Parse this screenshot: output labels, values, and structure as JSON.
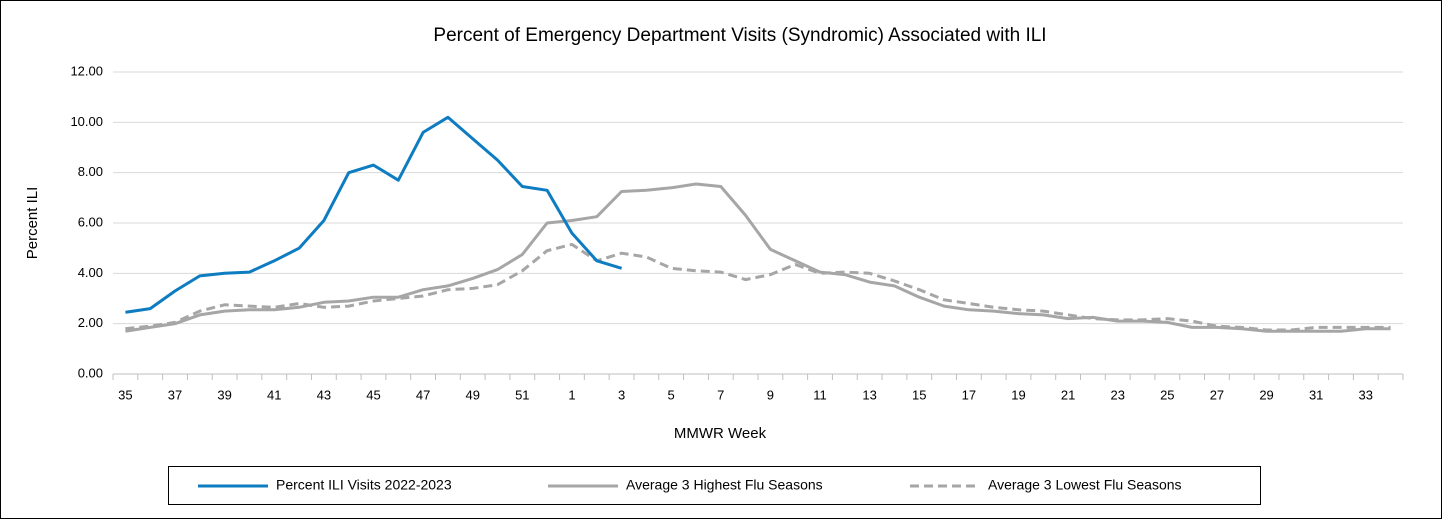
{
  "chart_data": {
    "type": "line",
    "title": "Percent of Emergency Department Visits (Syndromic)  Associated with ILI",
    "x_label": "MMWR Week",
    "y_label": "Percent ILI",
    "categories": [
      "35",
      null,
      "37",
      null,
      "39",
      null,
      "41",
      null,
      "43",
      null,
      "45",
      null,
      "47",
      null,
      "49",
      null,
      "51",
      null,
      "1",
      null,
      "3",
      null,
      "5",
      null,
      "7",
      null,
      "9",
      null,
      "11",
      null,
      "13",
      null,
      "15",
      null,
      "17",
      null,
      "19",
      null,
      "21",
      null,
      "23",
      null,
      "25",
      null,
      "27",
      null,
      "29",
      null,
      "31",
      null,
      "33",
      null
    ],
    "ylim": [
      0,
      12
    ],
    "yticks": [
      {
        "value": 0,
        "label": "0.00"
      },
      {
        "value": 2,
        "label": "2.00"
      },
      {
        "value": 4,
        "label": "4.00"
      },
      {
        "value": 6,
        "label": "6.00"
      },
      {
        "value": 8,
        "label": "8.00"
      },
      {
        "value": 10,
        "label": "10.00"
      },
      {
        "value": 12,
        "label": "12.00"
      }
    ],
    "grid": true,
    "legend": "bottom",
    "series": [
      {
        "name": "Percent ILI Visits 2022-2023",
        "color": "#0e7cc1",
        "dashed": false,
        "values": [
          2.45,
          2.6,
          3.3,
          3.9,
          4.0,
          4.05,
          4.5,
          5.0,
          6.1,
          8.0,
          8.3,
          7.7,
          9.6,
          10.2,
          9.35,
          8.5,
          7.45,
          7.3,
          5.6,
          4.5,
          4.2,
          null,
          null,
          null,
          null,
          null,
          null,
          null,
          null,
          null,
          null,
          null,
          null,
          null,
          null,
          null,
          null,
          null,
          null,
          null,
          null,
          null,
          null,
          null,
          null,
          null,
          null,
          null,
          null,
          null,
          null,
          null
        ]
      },
      {
        "name": "Average 3 Highest Flu Seasons",
        "color": "#a6a6a6",
        "dashed": false,
        "values": [
          1.7,
          1.85,
          2.0,
          2.35,
          2.5,
          2.55,
          2.55,
          2.65,
          2.85,
          2.9,
          3.05,
          3.05,
          3.35,
          3.5,
          3.8,
          4.15,
          4.75,
          6.0,
          6.1,
          6.25,
          7.25,
          7.3,
          7.4,
          7.55,
          7.45,
          6.3,
          4.95,
          4.5,
          4.05,
          3.95,
          3.65,
          3.5,
          3.05,
          2.7,
          2.55,
          2.5,
          2.4,
          2.35,
          2.2,
          2.25,
          2.1,
          2.1,
          2.05,
          1.85,
          1.85,
          1.8,
          1.7,
          1.7,
          1.7,
          1.7,
          1.8,
          1.8
        ]
      },
      {
        "name": "Average 3 Lowest Flu Seasons",
        "color": "#a6a6a6",
        "dashed": true,
        "values": [
          1.8,
          1.9,
          2.05,
          2.5,
          2.75,
          2.7,
          2.65,
          2.8,
          2.65,
          2.7,
          2.9,
          3.0,
          3.1,
          3.35,
          3.4,
          3.55,
          4.1,
          4.9,
          5.15,
          4.5,
          4.8,
          4.65,
          4.2,
          4.1,
          4.05,
          3.75,
          3.95,
          4.35,
          4.0,
          4.05,
          4.0,
          3.7,
          3.35,
          2.95,
          2.8,
          2.65,
          2.55,
          2.5,
          2.35,
          2.2,
          2.15,
          2.15,
          2.2,
          2.1,
          1.9,
          1.85,
          1.75,
          1.75,
          1.85,
          1.85,
          1.85,
          1.85
        ]
      }
    ]
  }
}
